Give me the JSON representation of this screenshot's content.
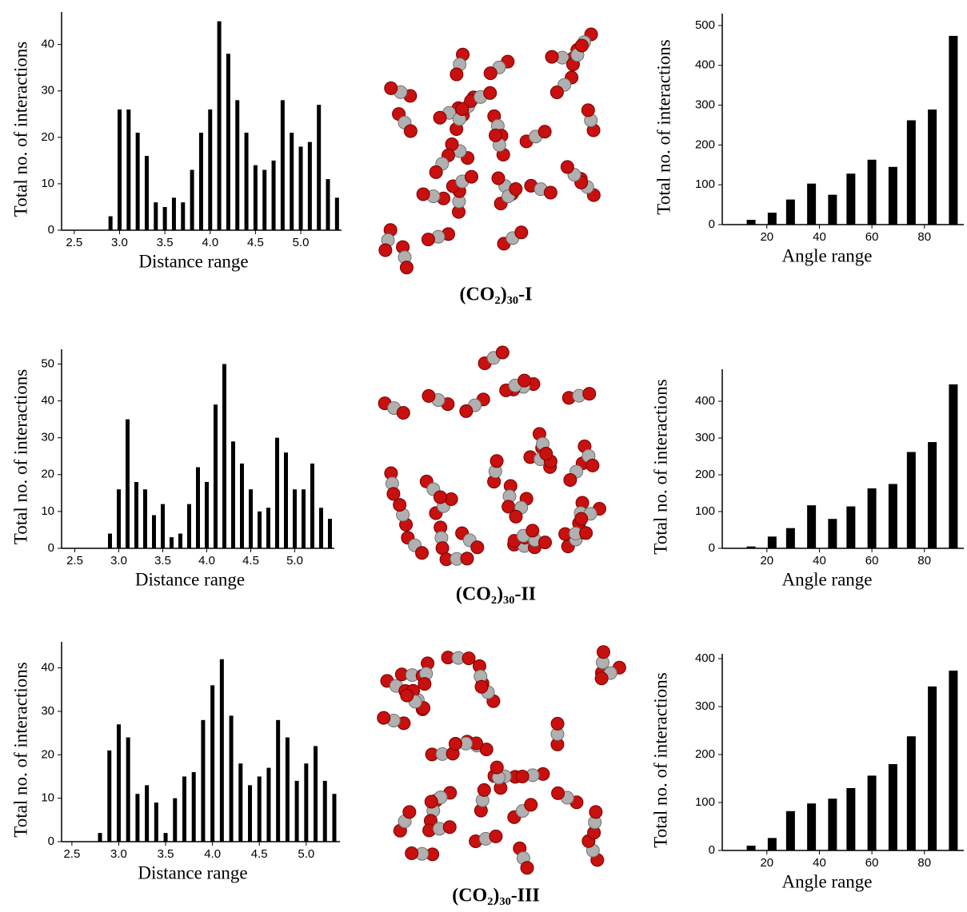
{
  "chart_data": [
    {
      "type": "bar",
      "x": [
        2.9,
        3.0,
        3.1,
        3.2,
        3.3,
        3.4,
        3.5,
        3.6,
        3.7,
        3.8,
        3.9,
        4.0,
        4.1,
        4.2,
        4.3,
        4.4,
        4.5,
        4.6,
        4.7,
        4.8,
        4.9,
        5.0,
        5.1,
        5.2,
        5.3,
        5.4
      ],
      "values": [
        3,
        26,
        26,
        21,
        16,
        6,
        5,
        7,
        6,
        13,
        21,
        26,
        45,
        38,
        28,
        21,
        14,
        13,
        15,
        28,
        21,
        18,
        19,
        27,
        11,
        7
      ],
      "color": "#000000",
      "xlim": [
        2.36,
        5.45
      ],
      "ylim": [
        0,
        47
      ],
      "xticks": [
        2.5,
        {
          "value": 3,
          "label": "3.0"
        },
        3.5,
        {
          "value": 4,
          "label": "4.0"
        },
        4.5,
        {
          "value": 5,
          "label": "5.0"
        }
      ],
      "yticks": [
        0,
        10,
        20,
        30,
        40
      ],
      "x_label": "Distance range",
      "y_label": "Total no. of interactions"
    },
    {
      "type": "bar",
      "x": [
        14,
        22,
        29,
        37,
        45,
        52,
        60,
        68,
        75,
        83,
        91
      ],
      "values": [
        12,
        30,
        63,
        103,
        75,
        128,
        163,
        145,
        262,
        289,
        474
      ],
      "color": "#000000",
      "xlim": [
        3,
        95
      ],
      "ylim": [
        0,
        530
      ],
      "xticks": [
        20,
        40,
        60,
        80
      ],
      "yticks": [
        0,
        100,
        200,
        300,
        400,
        500
      ],
      "x_label": "Angle range",
      "y_label": "Total no. of interactions"
    },
    {
      "type": "bar",
      "x": [
        2.9,
        3.0,
        3.1,
        3.2,
        3.3,
        3.4,
        3.5,
        3.6,
        3.7,
        3.8,
        3.9,
        4.0,
        4.1,
        4.2,
        4.3,
        4.4,
        4.5,
        4.6,
        4.7,
        4.8,
        4.9,
        5.0,
        5.1,
        5.2,
        5.3,
        5.4
      ],
      "values": [
        4,
        16,
        35,
        18,
        16,
        9,
        12,
        3,
        4,
        12,
        22,
        18,
        39,
        50,
        29,
        23,
        16,
        10,
        11,
        30,
        26,
        16,
        16,
        23,
        11,
        8
      ],
      "color": "#000000",
      "xlim": [
        2.35,
        5.45
      ],
      "ylim": [
        0,
        54
      ],
      "xticks": [
        2.5,
        {
          "value": 3,
          "label": "3.0"
        },
        3.5,
        {
          "value": 4,
          "label": "4.0"
        },
        4.5,
        {
          "value": 5,
          "label": "5.0"
        }
      ],
      "yticks": [
        0,
        10,
        20,
        30,
        40,
        50
      ],
      "x_label": "Distance range",
      "y_label": "Total no. of interactions"
    },
    {
      "type": "bar",
      "x": [
        14,
        22,
        29,
        37,
        45,
        52,
        60,
        68,
        75,
        83,
        91
      ],
      "values": [
        5,
        32,
        55,
        117,
        80,
        114,
        163,
        175,
        262,
        289,
        446
      ],
      "color": "#000000",
      "xlim": [
        3,
        95
      ],
      "ylim": [
        0,
        487
      ],
      "xticks": [
        20,
        40,
        60,
        80
      ],
      "yticks": [
        0,
        100,
        200,
        300,
        400
      ],
      "x_label": "Angle range",
      "y_label": "Total no. of interactions"
    },
    {
      "type": "bar",
      "x": [
        2.8,
        2.9,
        3.0,
        3.1,
        3.2,
        3.3,
        3.4,
        3.5,
        3.6,
        3.7,
        3.8,
        3.9,
        4.0,
        4.1,
        4.2,
        4.3,
        4.4,
        4.5,
        4.6,
        4.7,
        4.8,
        4.9,
        5.0,
        5.1,
        5.2,
        5.3
      ],
      "values": [
        2,
        21,
        27,
        24,
        11,
        13,
        9,
        2,
        10,
        15,
        16,
        28,
        36,
        42,
        29,
        18,
        13,
        15,
        17,
        28,
        24,
        14,
        18,
        22,
        14,
        11
      ],
      "color": "#000000",
      "xlim": [
        2.39,
        5.36
      ],
      "ylim": [
        0,
        46
      ],
      "xticks": [
        2.5,
        {
          "value": 3,
          "label": "3.0"
        },
        3.5,
        {
          "value": 4,
          "label": "4.0"
        },
        4.5,
        {
          "value": 5,
          "label": "5.0"
        }
      ],
      "yticks": [
        0,
        10,
        20,
        30,
        40
      ],
      "x_label": "Distance range",
      "y_label": "Total no. of interactions"
    },
    {
      "type": "bar",
      "x": [
        14,
        22,
        29,
        37,
        45,
        52,
        60,
        68,
        75,
        83,
        91
      ],
      "values": [
        10,
        26,
        82,
        98,
        108,
        130,
        156,
        180,
        238,
        342,
        375
      ],
      "color": "#000000",
      "xlim": [
        3,
        95
      ],
      "ylim": [
        0,
        410
      ],
      "xticks": [
        20,
        40,
        60,
        80
      ],
      "yticks": [
        0,
        100,
        200,
        300,
        400
      ],
      "x_label": "Angle range",
      "y_label": "Total no. of interactions"
    }
  ],
  "structure_labels": [
    "(CO₂)₃₀-I",
    "(CO₂)₃₀-II",
    "(CO₂)₃₀-III"
  ]
}
